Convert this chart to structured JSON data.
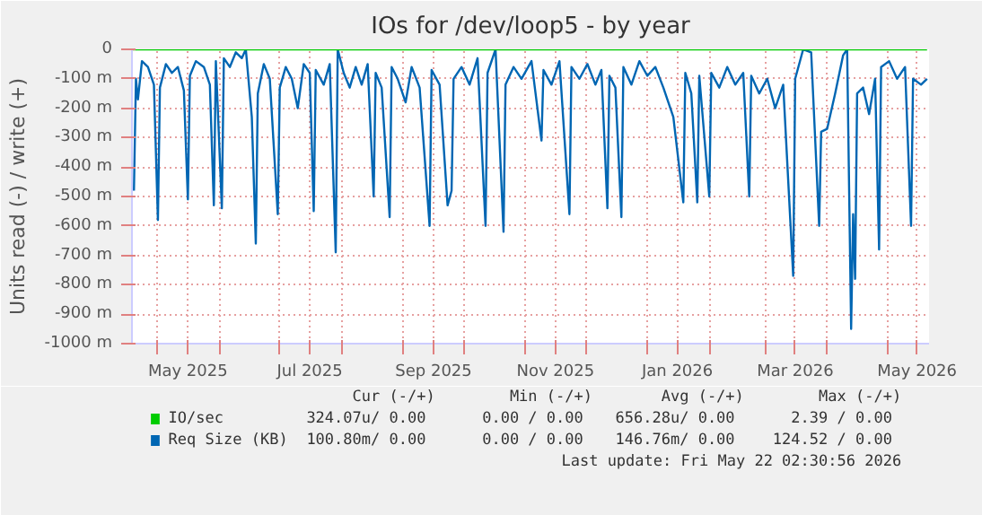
{
  "chart_data": {
    "type": "line",
    "title": "IOs for /dev/loop5 - by year",
    "ylabel": "Units read (-) / write (+)",
    "xlim": [
      "2025-04-18",
      "2026-05-22"
    ],
    "xticks": [
      {
        "value": "2025-05-01",
        "label": null
      },
      {
        "value": "2025-05-16",
        "label": "May 2025"
      },
      {
        "value": "2025-06-01",
        "label": null
      },
      {
        "value": "2025-07-01",
        "label": null
      },
      {
        "value": "2025-07-16",
        "label": "Jul 2025"
      },
      {
        "value": "2025-08-01",
        "label": null
      },
      {
        "value": "2025-09-01",
        "label": null
      },
      {
        "value": "2025-09-16",
        "label": "Sep 2025"
      },
      {
        "value": "2025-10-01",
        "label": null
      },
      {
        "value": "2025-11-01",
        "label": null
      },
      {
        "value": "2025-11-16",
        "label": "Nov 2025"
      },
      {
        "value": "2025-12-01",
        "label": null
      },
      {
        "value": "2026-01-01",
        "label": null
      },
      {
        "value": "2026-01-16",
        "label": "Jan 2026"
      },
      {
        "value": "2026-02-01",
        "label": null
      },
      {
        "value": "2026-03-01",
        "label": null
      },
      {
        "value": "2026-03-16",
        "label": "Mar 2026"
      },
      {
        "value": "2026-04-01",
        "label": null
      },
      {
        "value": "2026-05-01",
        "label": null
      },
      {
        "value": "2026-05-16",
        "label": "May 2026"
      }
    ],
    "ylim": [
      -1000,
      0
    ],
    "yticks": [
      0,
      {
        "value": -100,
        "label": "-100 m"
      },
      {
        "value": -200,
        "label": "-200 m"
      },
      {
        "value": -300,
        "label": "-300 m"
      },
      {
        "value": -400,
        "label": "-400 m"
      },
      {
        "value": -500,
        "label": "-500 m"
      },
      {
        "value": -600,
        "label": "-600 m"
      },
      {
        "value": -700,
        "label": "-700 m"
      },
      {
        "value": -800,
        "label": "-800 m"
      },
      {
        "value": -900,
        "label": "-900 m"
      },
      {
        "value": -1000,
        "label": "-1000 m"
      }
    ],
    "grid": true,
    "legend": "bottom",
    "line_style": "solid",
    "series": [
      {
        "name": "Req Size (KB)",
        "color": "#0066b3",
        "x": [
          "2025-04-19",
          "2025-04-20",
          "2025-04-21",
          "2025-04-23",
          "2025-04-26",
          "2025-04-29",
          "2025-05-01",
          "2025-05-02",
          "2025-05-05",
          "2025-05-08",
          "2025-05-11",
          "2025-05-14",
          "2025-05-16",
          "2025-05-17",
          "2025-05-20",
          "2025-05-24",
          "2025-05-27",
          "2025-05-29",
          "2025-05-30",
          "2025-06-02",
          "2025-06-03",
          "2025-06-06",
          "2025-06-09",
          "2025-06-12",
          "2025-06-14",
          "2025-06-17",
          "2025-06-19",
          "2025-06-20",
          "2025-06-23",
          "2025-06-26",
          "2025-06-30",
          "2025-07-01",
          "2025-07-04",
          "2025-07-07",
          "2025-07-10",
          "2025-07-13",
          "2025-07-16",
          "2025-07-18",
          "2025-07-19",
          "2025-07-23",
          "2025-07-26",
          "2025-07-29",
          "2025-07-30",
          "2025-08-02",
          "2025-08-05",
          "2025-08-08",
          "2025-08-11",
          "2025-08-14",
          "2025-08-17",
          "2025-08-18",
          "2025-08-21",
          "2025-08-25",
          "2025-08-26",
          "2025-08-29",
          "2025-09-02",
          "2025-09-05",
          "2025-09-09",
          "2025-09-14",
          "2025-09-15",
          "2025-09-19",
          "2025-09-23",
          "2025-09-25",
          "2025-09-26",
          "2025-09-30",
          "2025-10-04",
          "2025-10-08",
          "2025-10-12",
          "2025-10-13",
          "2025-10-17",
          "2025-10-21",
          "2025-10-22",
          "2025-10-26",
          "2025-10-30",
          "2025-11-04",
          "2025-11-09",
          "2025-11-10",
          "2025-11-14",
          "2025-11-18",
          "2025-11-23",
          "2025-11-24",
          "2025-11-28",
          "2025-12-02",
          "2025-12-06",
          "2025-12-09",
          "2025-12-12",
          "2025-12-13",
          "2025-12-16",
          "2025-12-19",
          "2025-12-20",
          "2025-12-24",
          "2025-12-28",
          "2026-01-01",
          "2026-01-05",
          "2026-01-09",
          "2026-01-14",
          "2026-01-19",
          "2026-01-20",
          "2026-01-23",
          "2026-01-26",
          "2026-01-27",
          "2026-02-01",
          "2026-02-02",
          "2026-02-06",
          "2026-02-10",
          "2026-02-14",
          "2026-02-18",
          "2026-02-21",
          "2026-02-22",
          "2026-02-26",
          "2026-03-02",
          "2026-03-06",
          "2026-03-10",
          "2026-03-15",
          "2026-03-16",
          "2026-03-20",
          "2026-03-24",
          "2026-03-28",
          "2026-03-29",
          "2026-04-01",
          "2026-04-05",
          "2026-04-09",
          "2026-04-11",
          "2026-04-13",
          "2026-04-14",
          "2026-04-15",
          "2026-04-16",
          "2026-04-19",
          "2026-04-22",
          "2026-04-25",
          "2026-04-27",
          "2026-04-28",
          "2026-05-02",
          "2026-05-06",
          "2026-05-10",
          "2026-05-13",
          "2026-05-14",
          "2026-05-18",
          "2026-05-21"
        ],
        "values": [
          -480,
          -100,
          -170,
          -40,
          -60,
          -120,
          -580,
          -130,
          -50,
          -80,
          -60,
          -140,
          -510,
          -90,
          -40,
          -60,
          -120,
          -530,
          -40,
          -540,
          -30,
          -60,
          -10,
          -30,
          0,
          -230,
          -660,
          -150,
          -50,
          -100,
          -560,
          -130,
          -60,
          -100,
          -200,
          -50,
          -80,
          -550,
          -70,
          -120,
          -50,
          -690,
          0,
          -80,
          -130,
          -60,
          -120,
          -50,
          -500,
          -80,
          -130,
          -570,
          -60,
          -100,
          -180,
          -60,
          -130,
          -600,
          -70,
          -120,
          -530,
          -480,
          -100,
          -60,
          -120,
          -30,
          -600,
          -80,
          0,
          -620,
          -120,
          -60,
          -100,
          -40,
          -310,
          -70,
          -120,
          -40,
          -560,
          -60,
          -100,
          -50,
          -120,
          -70,
          -540,
          -90,
          -130,
          -570,
          -60,
          -120,
          -40,
          -90,
          -60,
          -130,
          -230,
          -520,
          -80,
          -150,
          -520,
          -90,
          -500,
          -80,
          -130,
          -60,
          -120,
          -80,
          -500,
          -90,
          -150,
          -100,
          -200,
          -120,
          -770,
          -100,
          0,
          -10,
          -600,
          -280,
          -270,
          -150,
          -20,
          0,
          -950,
          -560,
          -780,
          -150,
          -130,
          -220,
          -100,
          -680,
          -60,
          -40,
          -100,
          -60,
          -600,
          -100,
          -120,
          -100
        ]
      },
      {
        "name": "IO/sec",
        "color": "#00cc00",
        "x": [
          "2025-04-18",
          "2026-05-21"
        ],
        "values": [
          0,
          0
        ]
      }
    ],
    "annotations": [
      "Cur (-/+)",
      "Min (-/+)",
      "Avg (-/+)",
      "Max (-/+)",
      "324.07u/  0.00",
      "0.00 /  0.00",
      "656.28u/  0.00",
      "2.39 /  0.00",
      "100.80m/  0.00",
      "0.00 /  0.00",
      "146.76m/  0.00",
      "124.52 /  0.00",
      "Last update: Fri May 22 02:30:56 2026"
    ]
  }
}
